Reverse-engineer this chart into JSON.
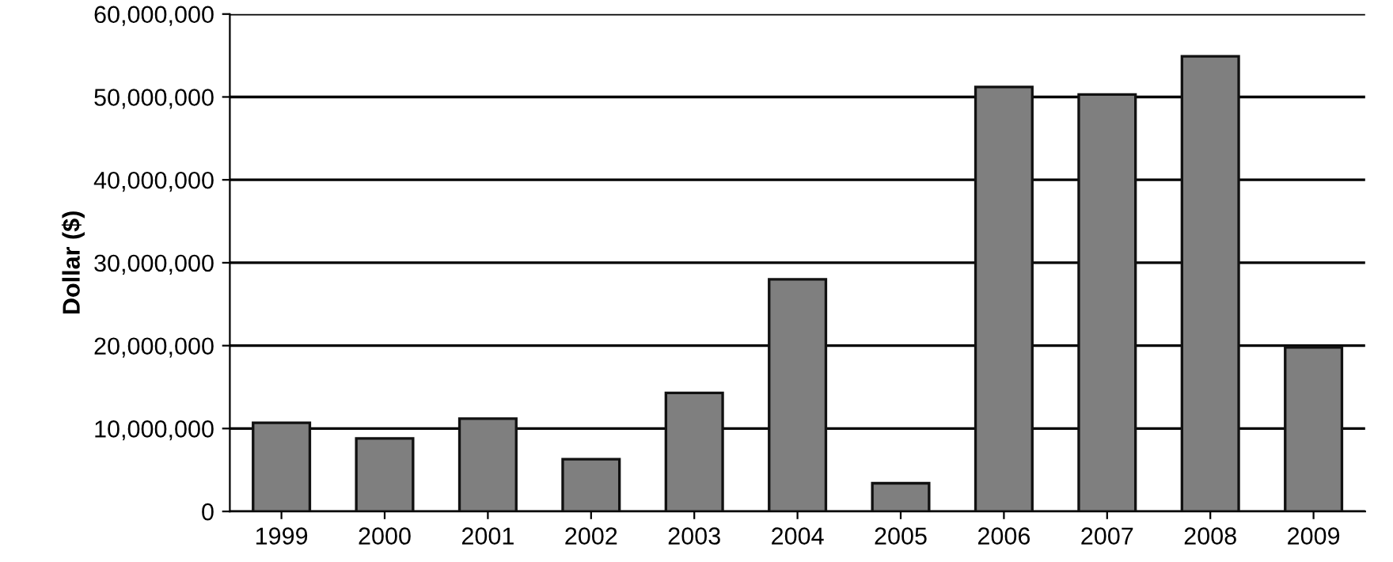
{
  "chart_data": {
    "type": "bar",
    "ylabel": "Dollar ($)",
    "categories": [
      "1999",
      "2000",
      "2001",
      "2002",
      "2003",
      "2004",
      "2005",
      "2006",
      "2007",
      "2008",
      "2009"
    ],
    "values": [
      10700000,
      8800000,
      11200000,
      6300000,
      14300000,
      28000000,
      3400000,
      51200000,
      50300000,
      54900000,
      19800000
    ],
    "color": "#7f7f7f",
    "ylim": [
      0,
      60000000
    ],
    "yticks": [
      0,
      {
        "value": 10000000,
        "label": "10,000,000"
      },
      {
        "value": 20000000,
        "label": "20,000,000"
      },
      {
        "value": 30000000,
        "label": "30,000,000"
      },
      {
        "value": 40000000,
        "label": "40,000,000"
      },
      {
        "value": 50000000,
        "label": "50,000,000"
      },
      {
        "value": 60000000,
        "label": "60,000,000"
      }
    ],
    "grid": "y"
  }
}
